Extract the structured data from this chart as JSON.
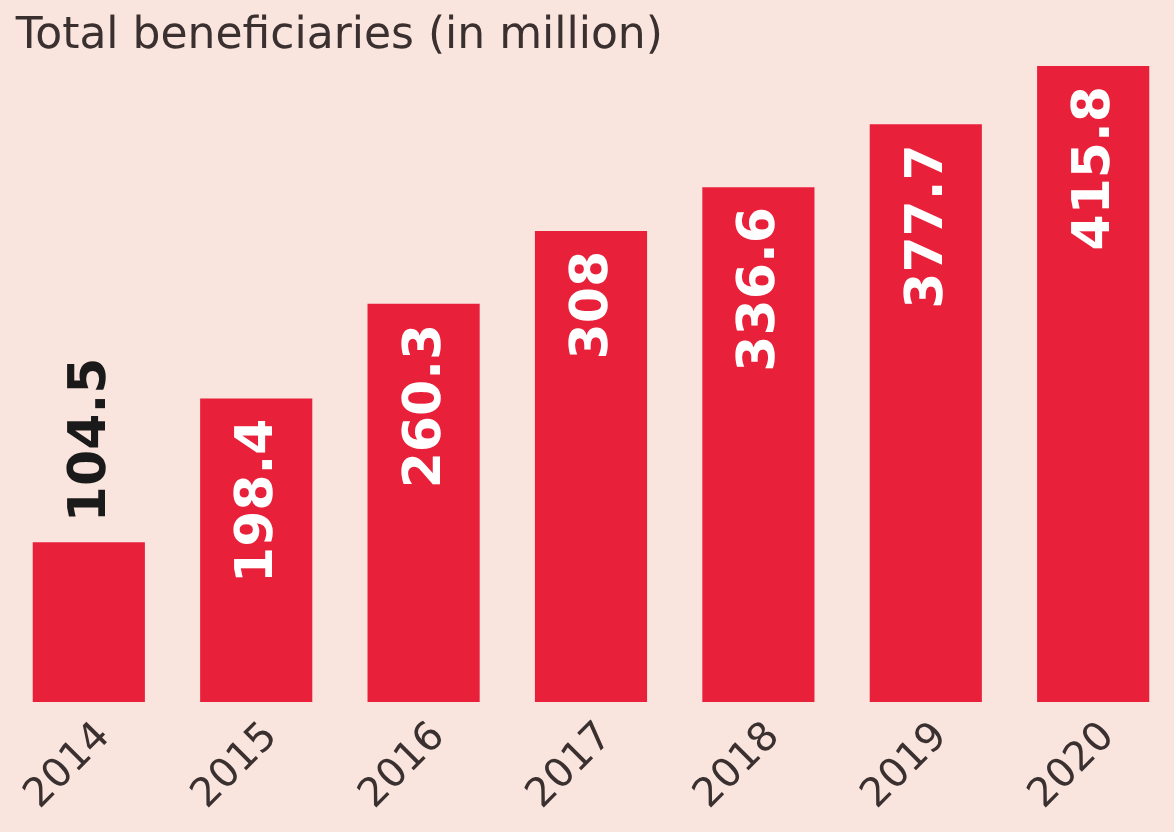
{
  "chart_data": {
    "type": "bar",
    "title": "Total beneficiaries (in million)",
    "categories": [
      "2014",
      "2015",
      "2016",
      "2017",
      "2018",
      "2019",
      "2020"
    ],
    "values": [
      104.5,
      198.4,
      260.3,
      308,
      336.6,
      377.7,
      415.8
    ],
    "color": "#e8203a",
    "data_labels": true
  }
}
